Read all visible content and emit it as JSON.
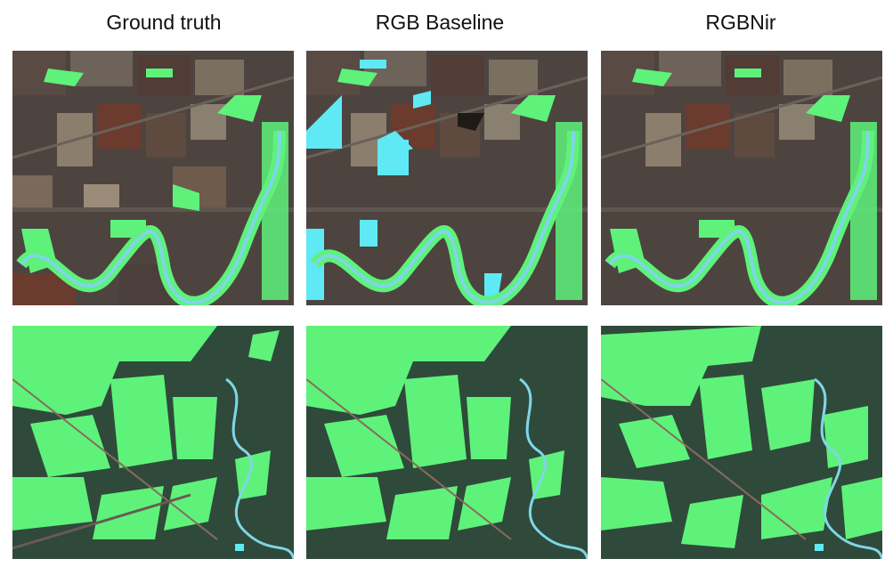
{
  "figure": {
    "columns": [
      {
        "title": "Ground truth"
      },
      {
        "title": "RGB Baseline"
      },
      {
        "title": "RGBNir"
      }
    ],
    "rows": [
      {
        "scene": "agricultural area with meandering river"
      },
      {
        "scene": "forest and fields with winding stream"
      }
    ]
  },
  "colors": {
    "green_overlay": "#5ef27a",
    "cyan_overlay": "#5fe9f5",
    "river": "#7fd6e6",
    "soil_dark": "#4a3a34",
    "soil_red": "#6b3b2e",
    "field_light": "#8a7f70",
    "vegetation_dark": "#2f4a3a"
  }
}
